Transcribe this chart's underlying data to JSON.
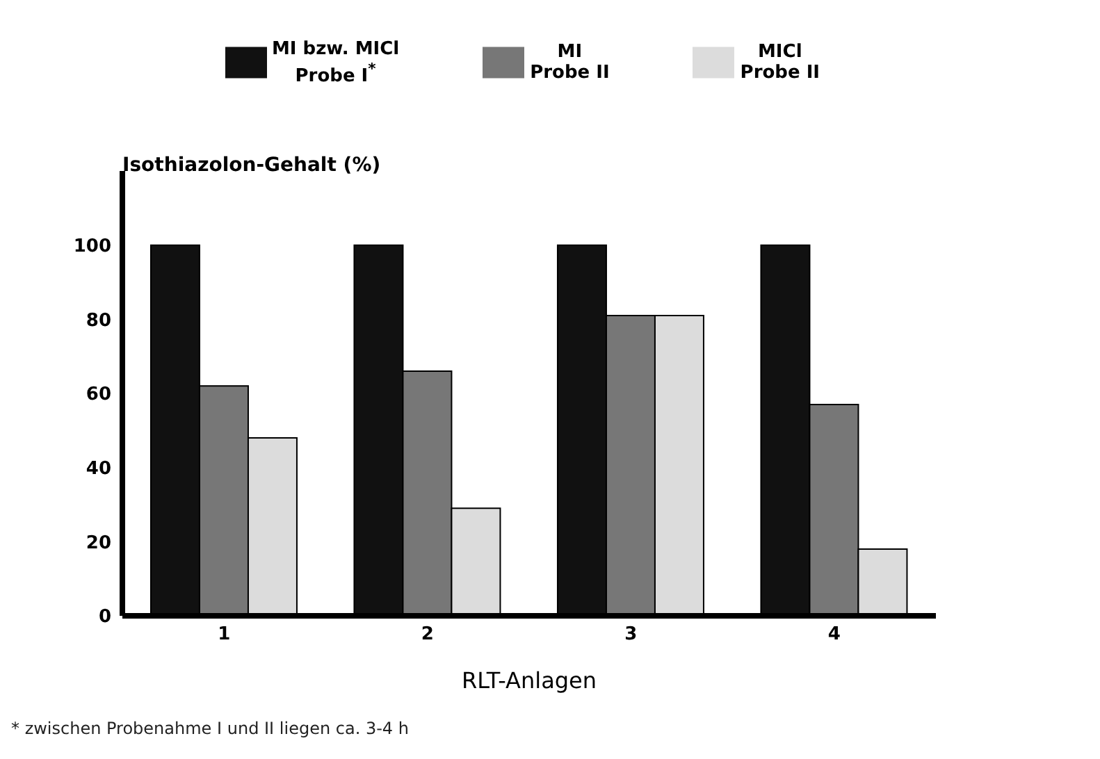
{
  "chart_data": {
    "type": "bar",
    "ylabel": "Isothiazolon-Gehalt (%)",
    "xlabel": "RLT-Anlagen",
    "categories": [
      "1",
      "2",
      "3",
      "4"
    ],
    "series": [
      {
        "name": "MI bzw. MICl\nProbe I$^{*}$",
        "color": "#111111",
        "values": [
          100,
          100,
          100,
          100
        ]
      },
      {
        "name": "MI\nProbe II",
        "color": "#777777",
        "values": [
          62,
          66,
          81,
          57
        ]
      },
      {
        "name": "MICl\nProbe II",
        "color": "#dcdcdc",
        "values": [
          48,
          29,
          81,
          18
        ]
      }
    ],
    "ylim": [
      0,
      120
    ],
    "yticks": [
      0,
      20,
      40,
      60,
      80,
      100
    ],
    "legend": "top",
    "annotations": [
      "* zwischen Probenahme I und II liegen ca. 3-4 h"
    ]
  }
}
